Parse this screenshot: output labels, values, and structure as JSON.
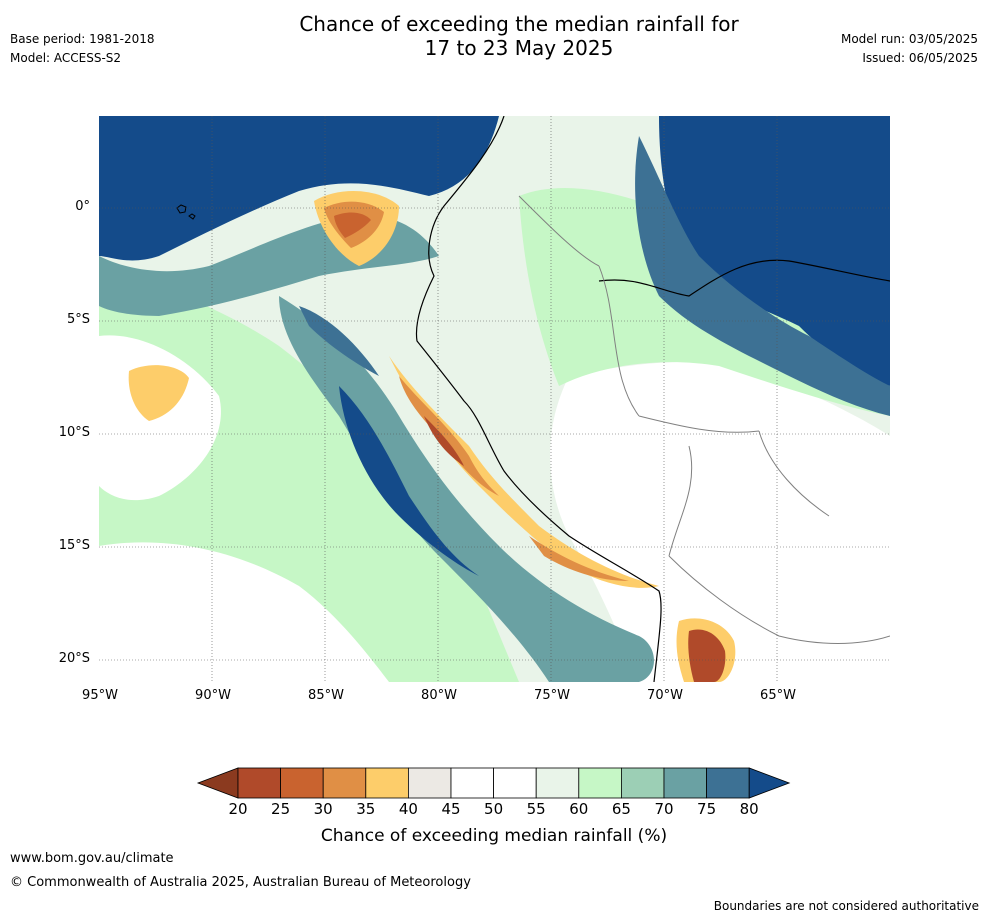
{
  "header": {
    "title_line1": "Chance of exceeding the median rainfall for",
    "title_line2": "17 to 23 May 2025",
    "base_period": "Base period: 1981-2018",
    "model": "Model: ACCESS-S2",
    "model_run": "Model run: 03/05/2025",
    "issued": "Issued: 06/05/2025"
  },
  "map": {
    "lat_labels": [
      "0°",
      "5°S",
      "10°S",
      "15°S",
      "20°S"
    ],
    "lon_labels": [
      "95°W",
      "90°W",
      "85°W",
      "80°W",
      "75°W",
      "70°W",
      "65°W"
    ],
    "ocean_region_color": "#1a4d8c",
    "coastline_color": "#000000",
    "border_color": "#808080"
  },
  "colorbar": {
    "ticks": [
      "20",
      "25",
      "30",
      "35",
      "40",
      "45",
      "50",
      "55",
      "60",
      "65",
      "70",
      "75",
      "80"
    ],
    "colors": [
      "#8b3a1f",
      "#b04a2a",
      "#c9632f",
      "#e08f45",
      "#fdcd6a",
      "#ece9e4",
      "#ffffff",
      "#ffffff",
      "#e9f4e9",
      "#c6f7c6",
      "#9ccfb5",
      "#6aa1a3",
      "#3d7194",
      "#144b8a"
    ],
    "label": "Chance of exceeding median rainfall (%)"
  },
  "footer": {
    "url": "www.bom.gov.au/climate",
    "copyright": "© Commonwealth of Australia 2025, Australian Bureau of Meteorology",
    "disclaimer": "Boundaries are not considered authoritative"
  }
}
